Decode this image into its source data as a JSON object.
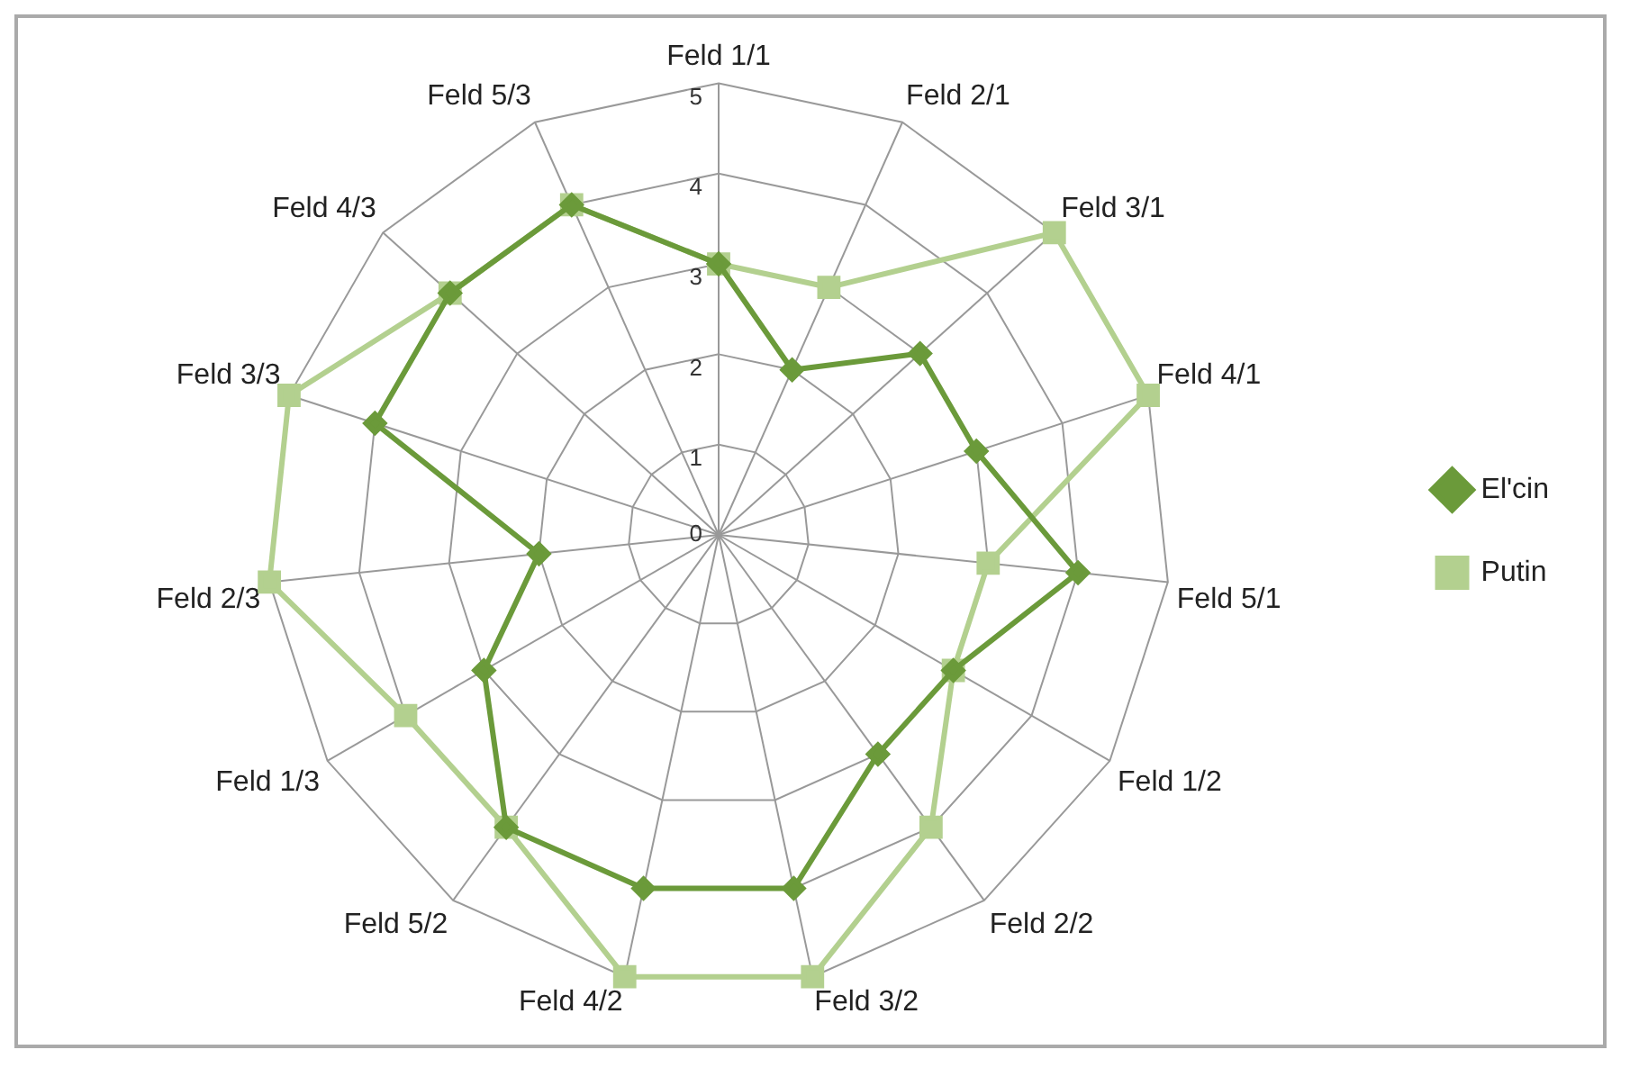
{
  "chart_data": {
    "type": "radar",
    "categories": [
      "Feld 1/1",
      "Feld 2/1",
      "Feld 3/1",
      "Feld 4/1",
      "Feld 5/1",
      "Feld 1/2",
      "Feld 2/2",
      "Feld 3/2",
      "Feld 4/2",
      "Feld 5/2",
      "Feld 1/3",
      "Feld 2/3",
      "Feld 3/3",
      "Feld 4/3",
      "Feld 5/3"
    ],
    "series": [
      {
        "name": "El'cin",
        "color": "#6b9a3a",
        "marker": "diamond",
        "values": [
          3,
          2,
          3,
          3,
          4,
          3,
          3,
          4,
          4,
          4,
          3,
          2,
          4,
          4,
          4
        ]
      },
      {
        "name": "Putin",
        "color": "#b3d08f",
        "marker": "square",
        "values": [
          3,
          3,
          5,
          5,
          3,
          3,
          4,
          5,
          5,
          4,
          4,
          5,
          5,
          4,
          4
        ]
      }
    ],
    "ylim": [
      0,
      5
    ],
    "yticks": [
      0,
      1,
      2,
      3,
      4,
      5
    ],
    "grid": true,
    "legend": "right"
  }
}
